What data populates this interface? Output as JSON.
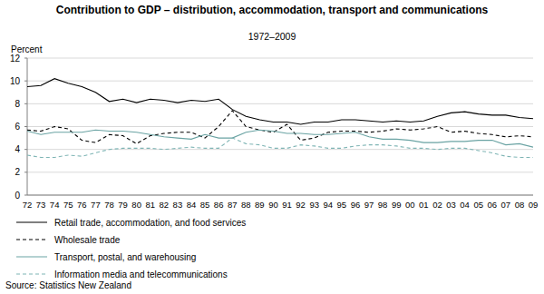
{
  "chart_data": {
    "type": "line",
    "title": "Contribution to GDP – distribution, accommodation, transport and communications",
    "subtitle": "1972–2009",
    "y_label": "Percent",
    "source": "Source: Statistics New Zealand",
    "categories": [
      "72",
      "73",
      "74",
      "75",
      "76",
      "77",
      "78",
      "79",
      "80",
      "81",
      "82",
      "83",
      "84",
      "85",
      "86",
      "87",
      "88",
      "89",
      "90",
      "91",
      "92",
      "93",
      "94",
      "95",
      "96",
      "97",
      "98",
      "99",
      "00",
      "01",
      "02",
      "03",
      "04",
      "05",
      "06",
      "07",
      "08",
      "09"
    ],
    "ylim": [
      0,
      12
    ],
    "yticks": [
      0,
      2,
      4,
      6,
      8,
      10,
      12
    ],
    "grid": true,
    "legend": "bottom",
    "series": [
      {
        "name": "Retail trade, accommodation, and food services",
        "color": "#000000",
        "line_style": "solid",
        "values": [
          9.5,
          9.6,
          10.2,
          9.8,
          9.5,
          9.0,
          8.2,
          8.4,
          8.1,
          8.4,
          8.3,
          8.1,
          8.3,
          8.2,
          8.4,
          7.5,
          6.9,
          6.6,
          6.4,
          6.4,
          6.2,
          6.4,
          6.4,
          6.6,
          6.6,
          6.5,
          6.4,
          6.5,
          6.4,
          6.5,
          6.9,
          7.2,
          7.3,
          7.1,
          7.0,
          7.0,
          6.8,
          6.7
        ]
      },
      {
        "name": "Wholesale trade",
        "color": "#000000",
        "line_style": "dashed",
        "values": [
          5.7,
          5.6,
          6.0,
          5.8,
          4.8,
          4.6,
          5.3,
          5.2,
          4.5,
          5.2,
          5.4,
          5.5,
          5.5,
          5.0,
          6.0,
          7.4,
          6.0,
          5.7,
          5.5,
          6.2,
          4.8,
          5.0,
          5.5,
          5.6,
          5.6,
          5.5,
          5.6,
          5.8,
          5.7,
          5.8,
          6.0,
          5.5,
          5.6,
          5.4,
          5.3,
          5.1,
          5.2,
          5.1
        ]
      },
      {
        "name": "Transport, postal, and warehousing",
        "color": "#6aa3a3",
        "line_style": "solid",
        "values": [
          5.6,
          5.3,
          5.5,
          5.5,
          5.5,
          5.7,
          5.6,
          5.6,
          5.5,
          5.3,
          5.1,
          5.0,
          4.9,
          5.3,
          5.0,
          5.0,
          5.5,
          5.7,
          5.6,
          5.4,
          5.4,
          5.3,
          5.3,
          5.4,
          5.5,
          5.1,
          4.9,
          4.9,
          4.8,
          4.6,
          4.6,
          4.7,
          4.7,
          4.8,
          4.8,
          4.4,
          4.5,
          4.2
        ]
      },
      {
        "name": "Information media and telecommunications",
        "color": "#7fb5b5",
        "line_style": "dashed",
        "values": [
          3.5,
          3.3,
          3.3,
          3.5,
          3.4,
          3.7,
          4.0,
          4.1,
          4.1,
          4.1,
          4.0,
          4.1,
          4.2,
          4.1,
          4.1,
          5.0,
          4.5,
          4.4,
          4.1,
          4.1,
          4.4,
          4.3,
          4.1,
          4.1,
          4.3,
          4.4,
          4.4,
          4.3,
          4.1,
          4.1,
          4.0,
          4.1,
          4.1,
          3.9,
          3.7,
          3.4,
          3.3,
          3.3
        ]
      }
    ]
  }
}
